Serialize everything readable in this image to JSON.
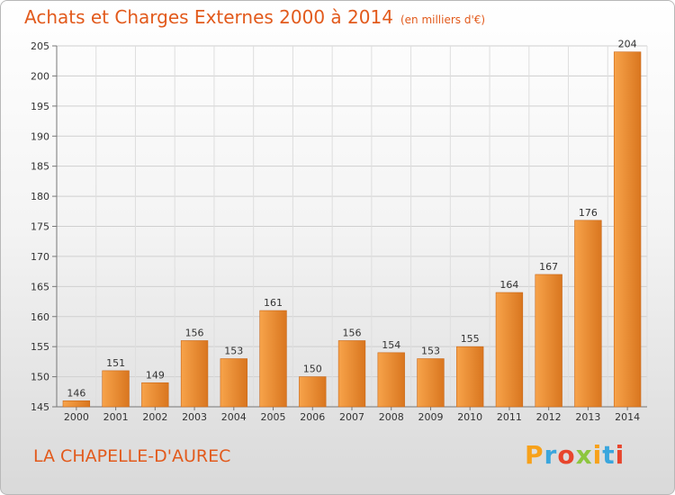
{
  "header": {
    "title": "Achats et Charges Externes 2000 à 2014",
    "subtitle": "(en milliers d'€)"
  },
  "footer": {
    "location": "LA CHAPELLE-D'AUREC",
    "logo": "Proxiti",
    "logo_colors": [
      "#f7a11a",
      "#3aa6dd",
      "#e8452c",
      "#8dc63f",
      "#f7a11a",
      "#3aa6dd",
      "#e8452c"
    ]
  },
  "colors": {
    "bar_light": "#f7a34a",
    "bar_dark": "#d9761f",
    "accent": "#e25a1c"
  },
  "chart_data": {
    "type": "bar",
    "title": "Achats et Charges Externes 2000 à 2014",
    "subtitle": "(en milliers d'€)",
    "categories": [
      "2000",
      "2001",
      "2002",
      "2003",
      "2004",
      "2005",
      "2006",
      "2007",
      "2008",
      "2009",
      "2010",
      "2011",
      "2012",
      "2013",
      "2014"
    ],
    "values": [
      146,
      151,
      149,
      156,
      153,
      161,
      150,
      156,
      154,
      153,
      155,
      164,
      167,
      176,
      204
    ],
    "ylim": [
      145,
      205
    ],
    "yticks": [
      145,
      150,
      155,
      160,
      165,
      170,
      175,
      180,
      185,
      190,
      195,
      200,
      205
    ],
    "grid": true,
    "data_labels": true,
    "xlabel": "",
    "ylabel": ""
  }
}
